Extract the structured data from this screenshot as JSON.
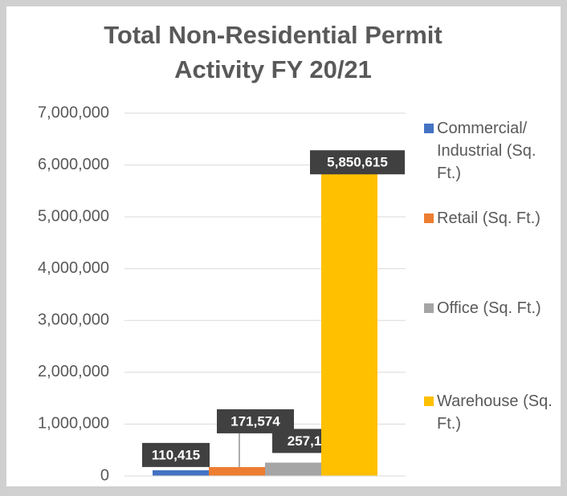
{
  "chart_data": {
    "type": "bar",
    "title": "Total Non-Residential Permit Activity FY 20/21",
    "categories": [
      null
    ],
    "series": [
      {
        "name": "Commercial/ Industrial (Sq. Ft.)",
        "color": "#4472c4",
        "values": [
          110415
        ],
        "value_labels": [
          "110,415"
        ]
      },
      {
        "name": "Retail (Sq. Ft.)",
        "color": "#ed7d31",
        "values": [
          171574
        ],
        "value_labels": [
          "171,574"
        ]
      },
      {
        "name": "Office (Sq. Ft.)",
        "color": "#a5a5a5",
        "values": [
          257118
        ],
        "value_labels": [
          "257,118"
        ]
      },
      {
        "name": "Warehouse (Sq. Ft.)",
        "color": "#ffc000",
        "values": [
          5850615
        ],
        "value_labels": [
          "5,850,615"
        ]
      }
    ],
    "ylim": [
      0,
      7000000
    ],
    "yticks": [
      0,
      {
        "value": 1000000,
        "label": "1,000,000"
      },
      {
        "value": 2000000,
        "label": "2,000,000"
      },
      {
        "value": 3000000,
        "label": "3,000,000"
      },
      {
        "value": 4000000,
        "label": "4,000,000"
      },
      {
        "value": 5000000,
        "label": "5,000,000"
      },
      {
        "value": 6000000,
        "label": "6,000,000"
      },
      {
        "value": 7000000,
        "label": "7,000,000"
      }
    ],
    "grid": true,
    "legend": "right"
  }
}
